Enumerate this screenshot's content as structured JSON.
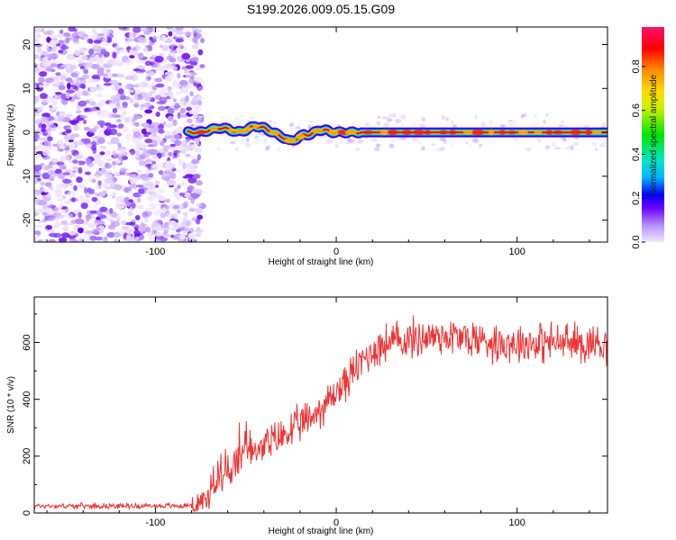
{
  "title": "S199.2026.009.05.15.G09",
  "chart_data": [
    {
      "type": "heatmap",
      "title": "S199.2026.009.05.15.G09",
      "xlabel": "Height of straight line (km)",
      "ylabel": "Frequency (Hz)",
      "xlim": [
        -167,
        150
      ],
      "ylim": [
        -25,
        24
      ],
      "xticks": [
        -100,
        0,
        100
      ],
      "yticks": [
        -20,
        -10,
        0,
        10,
        20
      ],
      "colorbar": {
        "label": "Normalized spectral amplitude",
        "range": [
          0,
          0.98
        ],
        "ticks": [
          0.0,
          0.2,
          0.4,
          0.6,
          0.8
        ],
        "colors": [
          "#e8d8ff",
          "#b48cff",
          "#6a00ff",
          "#0000ff",
          "#00b4ff",
          "#00e6c8",
          "#00e600",
          "#c8f000",
          "#ffdc00",
          "#ff8c00",
          "#ff0000",
          "#ff0080"
        ]
      },
      "noise_region_x": [
        -167,
        -80
      ],
      "ridge": {
        "x": [
          -80,
          -75,
          -70,
          -65,
          -60,
          -55,
          -50,
          -45,
          -40,
          -35,
          -30,
          -26,
          -22,
          -18,
          -14,
          -10,
          -6,
          -2,
          2,
          6,
          10,
          20,
          40,
          60,
          80,
          100,
          120,
          150
        ],
        "freq_hz": [
          0,
          0,
          0.5,
          1.0,
          0.8,
          0,
          0.5,
          1.5,
          1.0,
          0,
          -1.0,
          -2.0,
          -1.5,
          -0.5,
          -0.5,
          0.5,
          0.5,
          0,
          0,
          0,
          0,
          0,
          0,
          0,
          0,
          0,
          0,
          0
        ]
      }
    },
    {
      "type": "line",
      "xlabel": "Height of straight line (km)",
      "ylabel": "SNR (10 * v/v)",
      "xlim": [
        -167,
        150
      ],
      "ylim": [
        0,
        760
      ],
      "xticks": [
        -100,
        0,
        100
      ],
      "yticks": [
        0,
        200,
        400,
        600
      ],
      "color": "#ee3333",
      "series": [
        {
          "name": "SNR",
          "x": [
            -167,
            -120,
            -85,
            -78,
            -70,
            -65,
            -60,
            -55,
            -50,
            -45,
            -40,
            -35,
            -30,
            -25,
            -20,
            -15,
            -10,
            -5,
            0,
            5,
            10,
            15,
            20,
            25,
            30,
            40,
            50,
            60,
            70,
            80,
            90,
            100,
            110,
            120,
            130,
            140,
            150
          ],
          "values": [
            25,
            25,
            25,
            30,
            60,
            110,
            150,
            175,
            200,
            215,
            235,
            250,
            270,
            290,
            310,
            330,
            360,
            390,
            425,
            460,
            500,
            540,
            570,
            590,
            600,
            610,
            620,
            625,
            615,
            610,
            600,
            600,
            600,
            600,
            598,
            598,
            600
          ]
        }
      ]
    }
  ]
}
